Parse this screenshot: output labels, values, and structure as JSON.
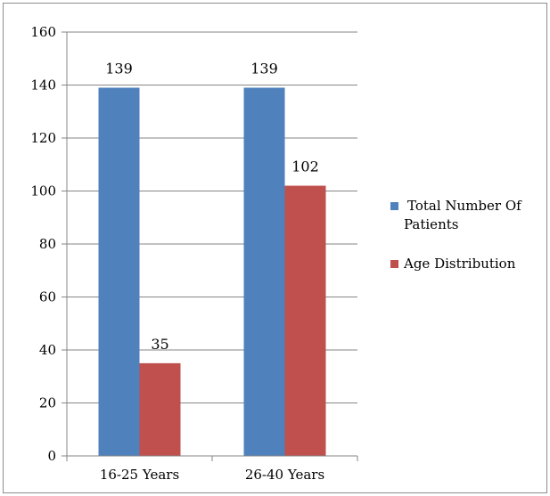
{
  "chart_data": {
    "type": "bar",
    "categories": [
      "16-25 Years",
      "26-40 Years"
    ],
    "series": [
      {
        "name": "Total Number Of Patients",
        "values": [
          139,
          139
        ],
        "color": "#4f81bd"
      },
      {
        "name": "Age Distribution",
        "values": [
          35,
          102
        ],
        "color": "#c0504d"
      }
    ],
    "ylim": [
      0,
      160
    ],
    "yticks": [
      0,
      20,
      40,
      60,
      80,
      100,
      120,
      140,
      160
    ],
    "grid": true,
    "legend_position": "right",
    "legend_lines": [
      [
        "Total Number Of",
        "Patients"
      ],
      [
        "Age Distribution"
      ]
    ],
    "data_labels": true,
    "axis_color": "#868686",
    "grid_color": "#868686"
  }
}
